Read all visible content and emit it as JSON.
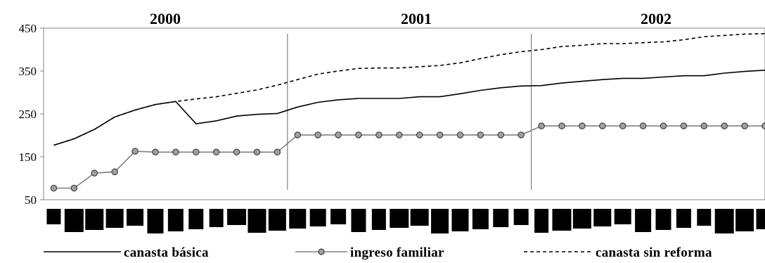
{
  "chart_data": {
    "type": "line",
    "title": "",
    "xlabel": "",
    "ylabel": "",
    "ylim": [
      50,
      450
    ],
    "yticks": [
      50,
      150,
      250,
      350,
      450
    ],
    "period_labels": [
      "2000",
      "2001",
      "2002"
    ],
    "x": [
      1,
      2,
      3,
      4,
      5,
      6,
      7,
      8,
      9,
      10,
      11,
      12,
      13,
      14,
      15,
      16,
      17,
      18,
      19,
      20,
      21,
      22,
      23,
      24,
      25,
      26,
      27,
      28,
      29,
      30,
      31,
      32,
      33,
      34,
      35,
      36
    ],
    "series": [
      {
        "name": "canasta básica",
        "color": "#000000",
        "style": "solid",
        "values": [
          177,
          192,
          214,
          243,
          259,
          272,
          279,
          227,
          234,
          245,
          249,
          251,
          266,
          277,
          283,
          286,
          286,
          286,
          290,
          290,
          297,
          305,
          311,
          315,
          316,
          322,
          326,
          330,
          333,
          333,
          336,
          339,
          339,
          345,
          349,
          352
        ]
      },
      {
        "name": "ingreso familiar",
        "color": "#808080",
        "style": "marker",
        "values": [
          77,
          77,
          112,
          115,
          163,
          161,
          161,
          161,
          161,
          161,
          161,
          161,
          201,
          201,
          201,
          201,
          201,
          201,
          201,
          201,
          201,
          201,
          201,
          201,
          222,
          222,
          222,
          222,
          222,
          222,
          222,
          222,
          222,
          222,
          222,
          222
        ]
      },
      {
        "name": "canasta sin reforma",
        "color": "#000000",
        "style": "dashed",
        "values": [
          177,
          192,
          214,
          243,
          259,
          272,
          279,
          285,
          290,
          298,
          306,
          317,
          330,
          343,
          350,
          356,
          357,
          357,
          360,
          363,
          369,
          379,
          388,
          395,
          400,
          407,
          410,
          414,
          414,
          416,
          418,
          423,
          430,
          433,
          436,
          437
        ]
      }
    ],
    "legend_position": "bottom",
    "grid": false,
    "year_separators": true
  }
}
